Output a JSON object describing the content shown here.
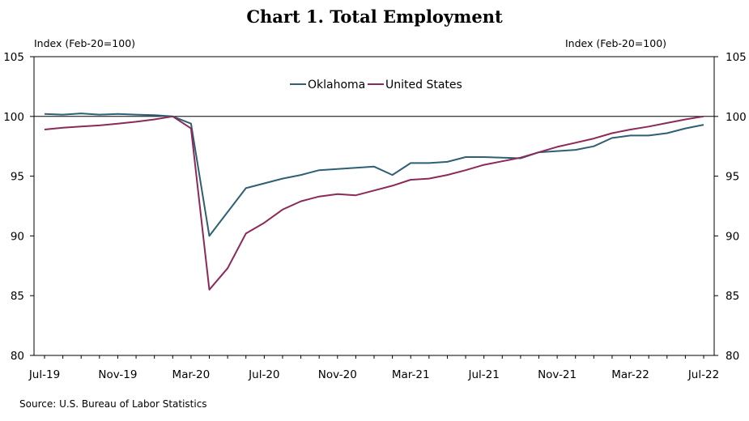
{
  "chart_data": {
    "type": "line",
    "title": "Chart 1. Total Employment",
    "ylabel_left": "Index (Feb-20=100)",
    "ylabel_right": "Index (Feb-20=100)",
    "source": "Source: U.S. Bureau of Labor Statistics",
    "ylim": [
      80,
      105
    ],
    "yticks": [
      80,
      85,
      90,
      95,
      100,
      105
    ],
    "xlim": [
      "2019-07",
      "2022-07"
    ],
    "xticks": [
      "Jul-19",
      "Nov-19",
      "Mar-20",
      "Jul-20",
      "Nov-20",
      "Mar-21",
      "Jul-21",
      "Nov-21",
      "Mar-22",
      "Jul-22"
    ],
    "reference_line": 100,
    "legend_position": "top-center",
    "grid": false,
    "x": [
      "2019-07",
      "2019-08",
      "2019-09",
      "2019-10",
      "2019-11",
      "2019-12",
      "2020-01",
      "2020-02",
      "2020-03",
      "2020-04",
      "2020-05",
      "2020-06",
      "2020-07",
      "2020-08",
      "2020-09",
      "2020-10",
      "2020-11",
      "2020-12",
      "2021-01",
      "2021-02",
      "2021-03",
      "2021-04",
      "2021-05",
      "2021-06",
      "2021-07",
      "2021-08",
      "2021-09",
      "2021-10",
      "2021-11",
      "2021-12",
      "2022-01",
      "2022-02",
      "2022-03",
      "2022-04",
      "2022-05",
      "2022-06",
      "2022-07"
    ],
    "series": [
      {
        "name": "Oklahoma",
        "color": "#2e5f74",
        "values": [
          100.2,
          100.15,
          100.25,
          100.15,
          100.2,
          100.15,
          100.1,
          100.0,
          99.4,
          90.0,
          92.0,
          94.0,
          94.4,
          94.8,
          95.1,
          95.5,
          95.6,
          95.7,
          95.8,
          95.1,
          96.1,
          96.1,
          96.2,
          96.6,
          96.6,
          96.55,
          96.5,
          97.0,
          97.1,
          97.2,
          97.5,
          98.2,
          98.4,
          98.4,
          98.6,
          99.0,
          99.3
        ]
      },
      {
        "name": "United States",
        "color": "#8b2a58",
        "values": [
          98.9,
          99.05,
          99.15,
          99.25,
          99.4,
          99.55,
          99.75,
          100.0,
          99.0,
          85.5,
          87.3,
          90.2,
          91.1,
          92.2,
          92.9,
          93.3,
          93.5,
          93.4,
          93.8,
          94.2,
          94.7,
          94.8,
          95.1,
          95.5,
          95.95,
          96.25,
          96.55,
          97.0,
          97.45,
          97.8,
          98.15,
          98.6,
          98.9,
          99.15,
          99.45,
          99.75,
          100.0
        ]
      }
    ]
  }
}
